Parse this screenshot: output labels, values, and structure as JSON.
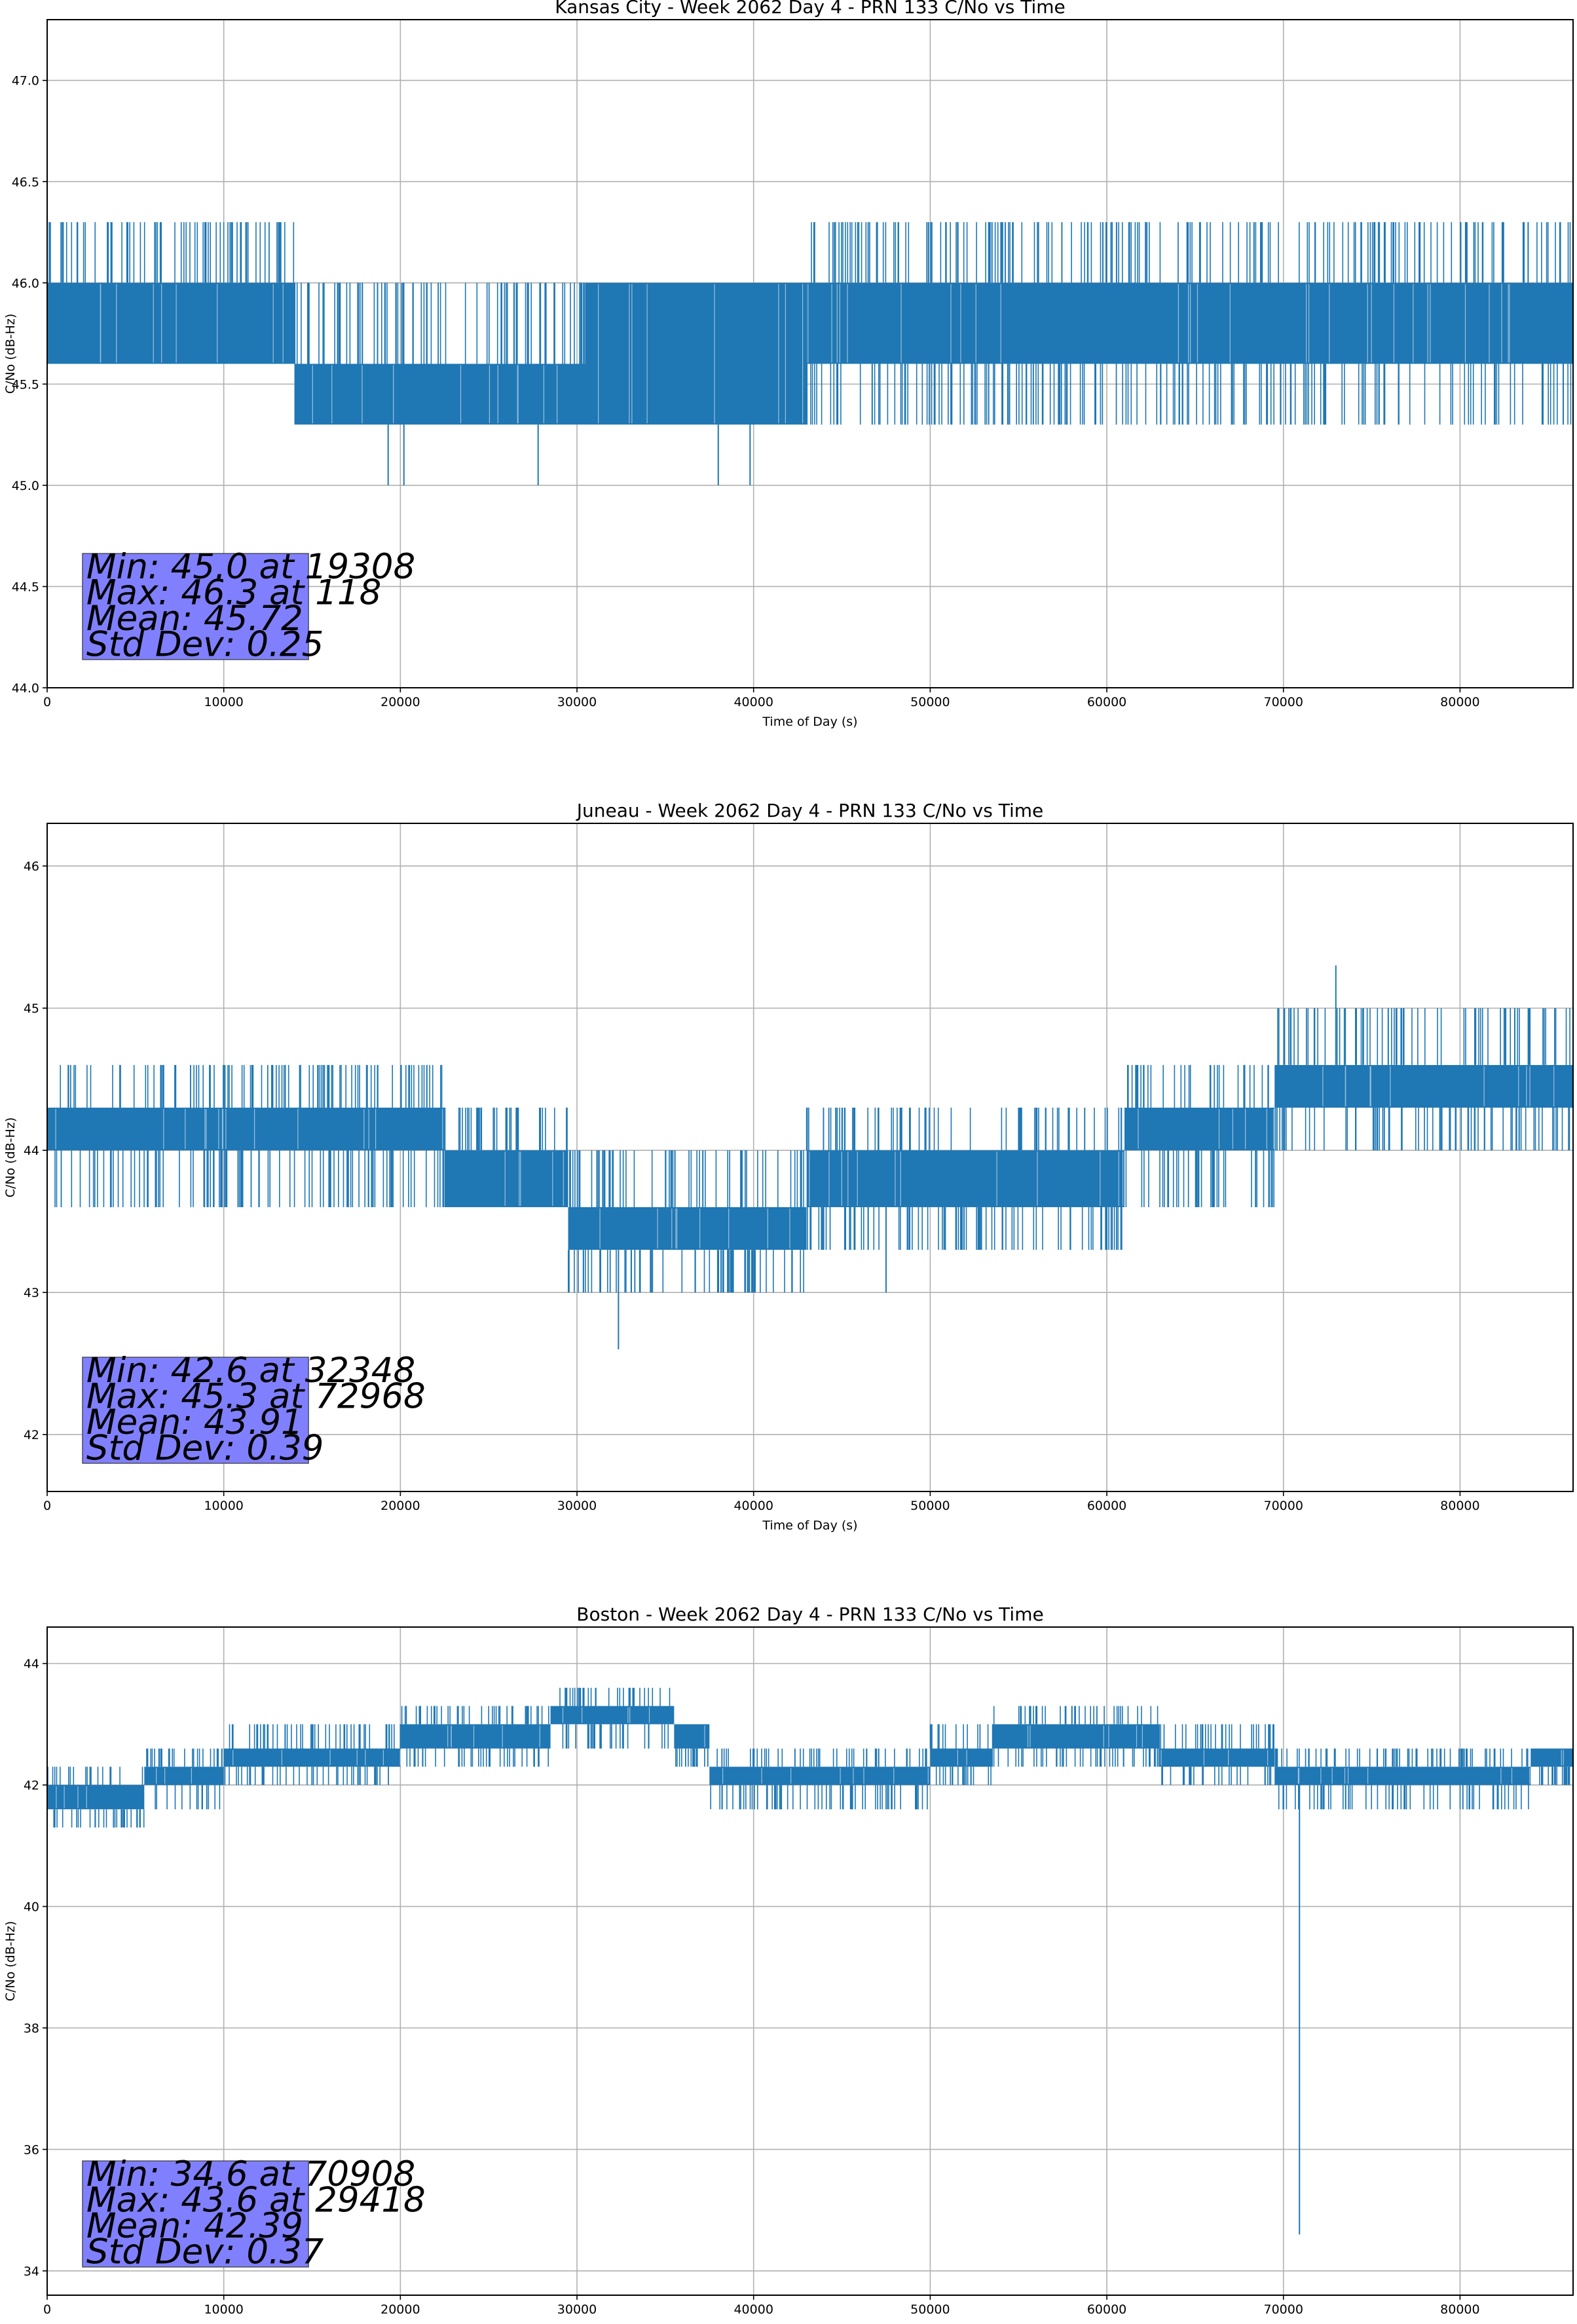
{
  "chart_data": [
    {
      "type": "line",
      "title": "Kansas City - Week 2062 Day 4 - PRN 133 C/No vs Time",
      "xlabel": "Time of Day (s)",
      "ylabel": "C/No (dB-Hz)",
      "xlim": [
        0,
        86400
      ],
      "ylim": [
        44.0,
        47.3
      ],
      "xticks": [
        "0",
        "10000",
        "20000",
        "30000",
        "40000",
        "50000",
        "60000",
        "70000",
        "80000"
      ],
      "yticks": [
        "44.0",
        "44.5",
        "45.0",
        "45.5",
        "46.0",
        "46.5",
        "47.0"
      ],
      "grid": true,
      "series_color": "#1f77b4",
      "stats_box_color": "#8080ff",
      "stats": [
        "Min: 45.0 at 19308",
        "Max: 46.3 at 118",
        "Mean: 45.72",
        "Std Dev: 0.25"
      ],
      "series": [
        {
          "segments": [
            {
              "x": [
                0,
                14000
              ],
              "band": [
                45.6,
                46.0
              ],
              "spikes_up": 46.3,
              "spikes_down": 45.6
            },
            {
              "x": [
                14000,
                30500
              ],
              "band": [
                45.3,
                45.6
              ],
              "spikes_up": 46.0,
              "spikes_down": 45.3
            },
            {
              "x": [
                30500,
                43000
              ],
              "band": [
                45.3,
                46.0
              ],
              "spikes_up": 46.0,
              "spikes_down": 45.3
            },
            {
              "x": [
                43000,
                86400
              ],
              "band": [
                45.6,
                46.0
              ],
              "spikes_up": 46.3,
              "spikes_down": 45.3
            }
          ],
          "extremes": [
            {
              "x": 118,
              "y": 46.3
            },
            {
              "x": 19308,
              "y": 45.0
            },
            {
              "x": 20200,
              "y": 45.0
            },
            {
              "x": 27800,
              "y": 45.0
            },
            {
              "x": 38000,
              "y": 45.0
            },
            {
              "x": 39800,
              "y": 45.0
            }
          ]
        }
      ]
    },
    {
      "type": "line",
      "title": "Juneau - Week 2062 Day 4 - PRN 133 C/No vs Time",
      "xlabel": "Time of Day (s)",
      "ylabel": "C/No (dB-Hz)",
      "xlim": [
        0,
        86400
      ],
      "ylim": [
        41.6,
        46.3
      ],
      "xticks": [
        "0",
        "10000",
        "20000",
        "30000",
        "40000",
        "50000",
        "60000",
        "70000",
        "80000"
      ],
      "yticks": [
        "42",
        "43",
        "44",
        "45",
        "46"
      ],
      "grid": true,
      "series_color": "#1f77b4",
      "stats_box_color": "#8080ff",
      "stats": [
        "Min: 42.6 at 32348",
        "Max: 45.3 at 72968",
        "Mean: 43.91",
        "Std Dev: 0.39"
      ],
      "series": [
        {
          "segments": [
            {
              "x": [
                0,
                22500
              ],
              "band": [
                44.0,
                44.3
              ],
              "spikes_up": 44.6,
              "spikes_down": 43.6
            },
            {
              "x": [
                22500,
                29500
              ],
              "band": [
                43.6,
                44.0
              ],
              "spikes_up": 44.3,
              "spikes_down": 43.6
            },
            {
              "x": [
                29500,
                43000
              ],
              "band": [
                43.3,
                43.6
              ],
              "spikes_up": 44.0,
              "spikes_down": 43.0
            },
            {
              "x": [
                43000,
                61000
              ],
              "band": [
                43.6,
                44.0
              ],
              "spikes_up": 44.3,
              "spikes_down": 43.3
            },
            {
              "x": [
                61000,
                69500
              ],
              "band": [
                44.0,
                44.3
              ],
              "spikes_up": 44.6,
              "spikes_down": 43.6
            },
            {
              "x": [
                69500,
                86400
              ],
              "band": [
                44.3,
                44.6
              ],
              "spikes_up": 45.0,
              "spikes_down": 44.0
            }
          ],
          "extremes": [
            {
              "x": 32348,
              "y": 42.6
            },
            {
              "x": 47500,
              "y": 43.0
            },
            {
              "x": 72968,
              "y": 45.3
            },
            {
              "x": 9200,
              "y": 44.6
            },
            {
              "x": 21500,
              "y": 44.6
            }
          ]
        }
      ]
    },
    {
      "type": "line",
      "title": "Boston - Week 2062 Day 4 - PRN 133 C/No vs Time",
      "xlabel": "Time of Day (s)",
      "ylabel": "C/No (dB-Hz)",
      "xlim": [
        0,
        86400
      ],
      "ylim": [
        33.6,
        44.6
      ],
      "xticks": [
        "0",
        "10000",
        "20000",
        "30000",
        "40000",
        "50000",
        "60000",
        "70000",
        "80000"
      ],
      "yticks": [
        "34",
        "36",
        "38",
        "40",
        "42",
        "44"
      ],
      "grid": true,
      "series_color": "#1f77b4",
      "stats_box_color": "#8080ff",
      "stats": [
        "Min: 34.6 at 70908",
        "Max: 43.6 at 29418",
        "Mean: 42.39",
        "Std Dev: 0.37"
      ],
      "series": [
        {
          "segments": [
            {
              "x": [
                0,
                5500
              ],
              "band": [
                41.6,
                42.0
              ],
              "spikes_up": 42.3,
              "spikes_down": 41.3
            },
            {
              "x": [
                5500,
                10000
              ],
              "band": [
                42.0,
                42.3
              ],
              "spikes_up": 42.6,
              "spikes_down": 41.6
            },
            {
              "x": [
                10000,
                20000
              ],
              "band": [
                42.3,
                42.6
              ],
              "spikes_up": 43.0,
              "spikes_down": 42.0
            },
            {
              "x": [
                20000,
                28500
              ],
              "band": [
                42.6,
                43.0
              ],
              "spikes_up": 43.3,
              "spikes_down": 42.3
            },
            {
              "x": [
                28500,
                35500
              ],
              "band": [
                43.0,
                43.3
              ],
              "spikes_up": 43.6,
              "spikes_down": 42.6
            },
            {
              "x": [
                35500,
                37500
              ],
              "band": [
                42.6,
                43.0
              ],
              "spikes_up": 43.0,
              "spikes_down": 42.3
            },
            {
              "x": [
                37500,
                50000
              ],
              "band": [
                42.0,
                42.3
              ],
              "spikes_up": 42.6,
              "spikes_down": 41.6
            },
            {
              "x": [
                50000,
                53500
              ],
              "band": [
                42.3,
                42.6
              ],
              "spikes_up": 43.0,
              "spikes_down": 42.0
            },
            {
              "x": [
                53500,
                63000
              ],
              "band": [
                42.6,
                43.0
              ],
              "spikes_up": 43.3,
              "spikes_down": 42.3
            },
            {
              "x": [
                63000,
                69500
              ],
              "band": [
                42.3,
                42.6
              ],
              "spikes_up": 43.0,
              "spikes_down": 42.0
            },
            {
              "x": [
                69500,
                84000
              ],
              "band": [
                42.0,
                42.3
              ],
              "spikes_up": 42.6,
              "spikes_down": 41.6
            },
            {
              "x": [
                84000,
                86400
              ],
              "band": [
                42.3,
                42.6
              ],
              "spikes_up": 42.6,
              "spikes_down": 42.0
            }
          ],
          "extremes": [
            {
              "x": 70908,
              "y": 34.6
            },
            {
              "x": 29418,
              "y": 43.6
            },
            {
              "x": 33000,
              "y": 43.6
            }
          ]
        }
      ]
    }
  ]
}
